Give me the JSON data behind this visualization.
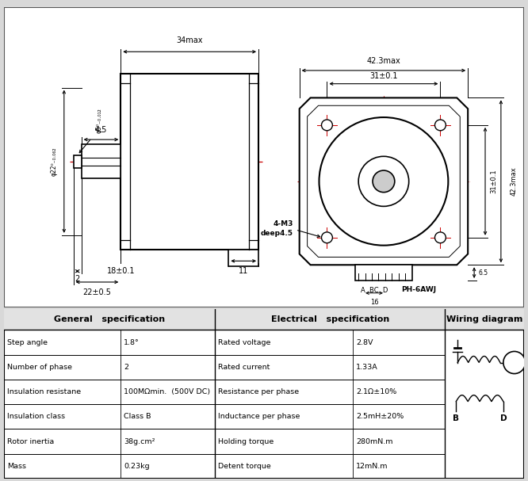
{
  "bg_color": "#d8d8d8",
  "drawing_bg": "#ffffff",
  "dim_color": "#000000",
  "red_color": "#cc0000",
  "general_spec": {
    "title": "General   specification",
    "rows": [
      [
        "Step angle",
        "1.8°"
      ],
      [
        "Number of phase",
        "2"
      ],
      [
        "Insulation resistane",
        "100MΩmin.  (500V DC)"
      ],
      [
        "Insulation class",
        "Class B"
      ],
      [
        "Rotor inertia",
        "38g.cm²"
      ],
      [
        "Mass",
        "0.23kg"
      ]
    ]
  },
  "electrical_spec": {
    "title": "Electrical   specification",
    "rows": [
      [
        "Rated voltage",
        "2.8V"
      ],
      [
        "Rated current",
        "1.33A"
      ],
      [
        "Resistance per phase",
        "2.1Ω±10%"
      ],
      [
        "Inductance per phase",
        "2.5mH±20%"
      ],
      [
        "Holding torque",
        "280mN.m"
      ],
      [
        "Detent torque",
        "12mN.m"
      ]
    ]
  },
  "wiring_title": "Wiring diagram"
}
